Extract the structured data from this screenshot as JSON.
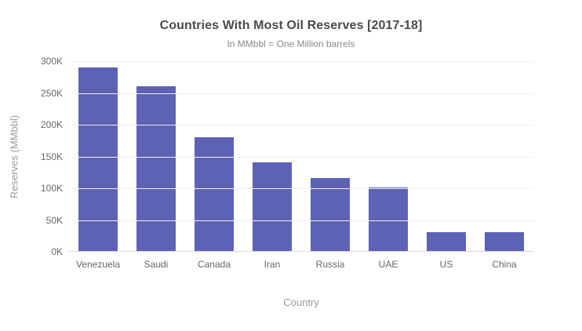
{
  "chart_data": {
    "type": "bar",
    "title": "Countries With Most Oil Reserves [2017-18]",
    "subtitle": "In MMbbl = One Million barrels",
    "xlabel": "Country",
    "ylabel": "Reserves (MMbbl)",
    "categories": [
      "Venezuela",
      "Saudi",
      "Canada",
      "Iran",
      "Russia",
      "UAE",
      "US",
      "China"
    ],
    "values": [
      290,
      260,
      180,
      140,
      115,
      100,
      30,
      30
    ],
    "value_unit": "K MMbbl",
    "ylim": [
      0,
      300
    ],
    "ytick_step": 50,
    "ytick_labels": [
      "0K",
      "50K",
      "100K",
      "150K",
      "200K",
      "250K",
      "300K"
    ],
    "grid": true,
    "legend": false
  },
  "colors": {
    "background": "#ffffff",
    "bar": "#5D62B5",
    "title_text": "#4a4a4a",
    "subtitle_text": "#8b8b8b",
    "tick_text": "#686868",
    "axis_title_text": "#9b9b9b",
    "gridline": "#efefef",
    "axis_line": "#d8d8d8"
  }
}
